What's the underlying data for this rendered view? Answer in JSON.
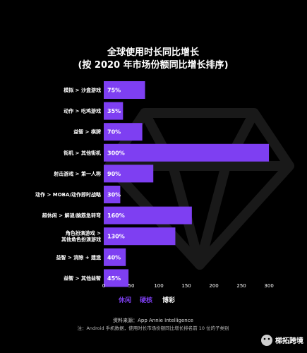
{
  "colors": {
    "background": "#000000",
    "purple": "#7e3ff2",
    "white_bar": "#ffffff",
    "text": "#ffffff"
  },
  "chart_data": {
    "type": "bar",
    "orientation": "horizontal",
    "title": "全球使用时长同比增长",
    "subtitle": "(按 2020 年市场份额同比增长排序)",
    "categories": [
      "模拟 > 沙盒游戏",
      "动作 > 吃鸡游戏",
      "益智 > 棋牌",
      "街机 > 其他街机",
      "射击游戏 > 第一人称",
      "动作 > MOBA/动作即时战略",
      "超休闲 > 解谜/脑筋急转弯",
      "角色扮演游戏 > 其他角色扮演游戏",
      "益智 > 消除 + 建造",
      "益智 > 其他益智"
    ],
    "category_lines": [
      [
        "模拟 > 沙盒游戏"
      ],
      [
        "动作 > 吃鸡游戏"
      ],
      [
        "益智 > 棋牌"
      ],
      [
        "街机 > 其他街机"
      ],
      [
        "射击游戏 > 第一人称"
      ],
      [
        "动作 > MOBA/动作即时战略"
      ],
      [
        "超休闲 > 解谜/脑筋急转弯"
      ],
      [
        "角色扮演游戏 >",
        "其他角色扮演游戏"
      ],
      [
        "益智 > 消除 + 建造"
      ],
      [
        "益智 > 其他益智"
      ]
    ],
    "values": [
      75,
      35,
      70,
      300,
      90,
      30,
      160,
      130,
      40,
      45
    ],
    "value_labels": [
      "75%",
      "35%",
      "70%",
      "300%",
      "90%",
      "30%",
      "160%",
      "130%",
      "40%",
      "45%"
    ],
    "bar_group": [
      "休闲",
      "硬核",
      "休闲",
      "休闲",
      "硬核",
      "硬核",
      "休闲",
      "硬核",
      "休闲",
      "休闲"
    ],
    "x_ticks": [
      0,
      50,
      100,
      150,
      200,
      250,
      300
    ],
    "xlim": [
      0,
      305
    ],
    "grid": false,
    "legend": {
      "placement": "bottom-left",
      "items": [
        {
          "label": "休闲",
          "color": "#7e3ff2"
        },
        {
          "label": "硬核",
          "color": "#7e3ff2"
        },
        {
          "label": "博彩",
          "color": "#ffffff"
        }
      ]
    }
  },
  "footer": {
    "source": "资料来源：App Annie Intelligence",
    "note": "注：Android 手机数据，使用时长市场份额同比增长排名前 10 位的子类别"
  },
  "watermark": {
    "text": "梯拓跨境"
  }
}
